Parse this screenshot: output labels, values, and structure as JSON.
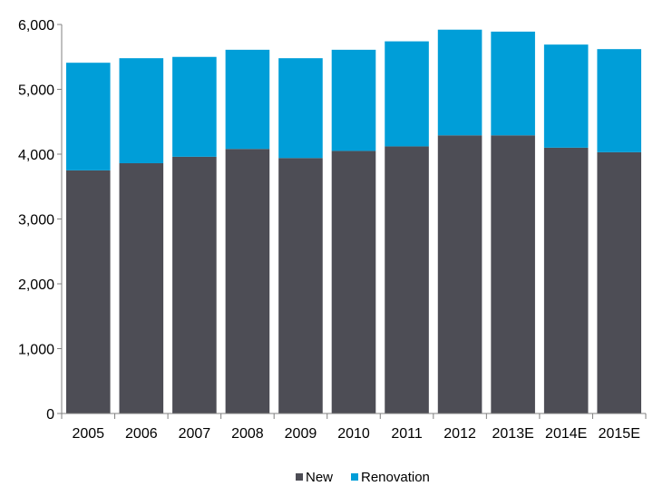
{
  "chart_data": {
    "type": "bar",
    "stacked": true,
    "categories": [
      "2005",
      "2006",
      "2007",
      "2008",
      "2009",
      "2010",
      "2011",
      "2012",
      "2013E",
      "2014E",
      "2015E"
    ],
    "series": [
      {
        "name": "New",
        "color": "#4d4d55",
        "values": [
          3750,
          3860,
          3960,
          4080,
          3940,
          4050,
          4120,
          4290,
          4290,
          4100,
          4030
        ]
      },
      {
        "name": "Renovation",
        "color": "#009ed8",
        "values": [
          1660,
          1620,
          1540,
          1530,
          1540,
          1560,
          1620,
          1630,
          1600,
          1590,
          1590
        ]
      }
    ],
    "y_ticks": [
      "0",
      "1,000",
      "2,000",
      "3,000",
      "4,000",
      "5,000",
      "6,000"
    ],
    "ylim": [
      0,
      6000
    ],
    "grid": false,
    "legend_position": "bottom-center"
  }
}
